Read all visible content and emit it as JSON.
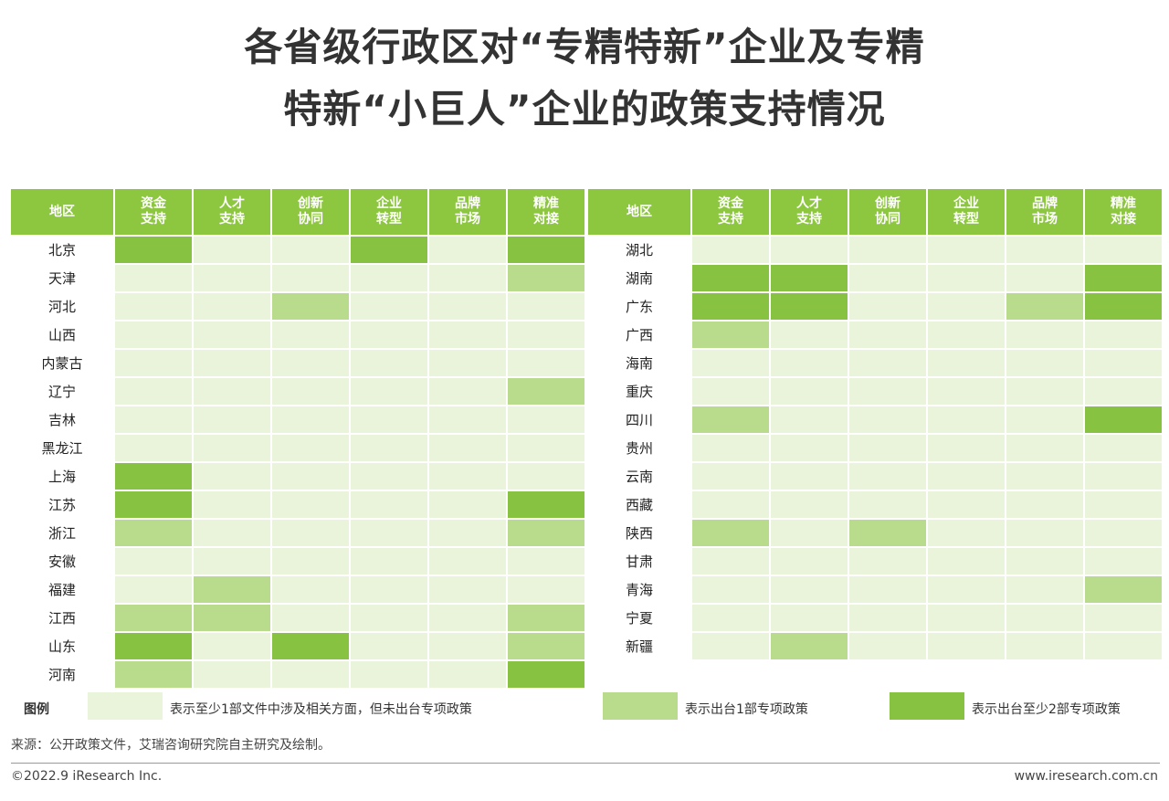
{
  "title_line1": "各省级行政区对“专精特新”企业及专精",
  "title_line2": "特新“小巨人”企业的政策支持情况",
  "columns": [
    "地区",
    "资金\n支持",
    "人才\n支持",
    "创新\n协同",
    "企业\n转型",
    "品牌\n市场",
    "精准\n对接"
  ],
  "colors": {
    "header": "#8dc63f",
    "level0": "#e9f4db",
    "level1": "#b8dc8c",
    "level2": "#87c241"
  },
  "left_rows": [
    {
      "region": "北京",
      "levels": [
        2,
        0,
        0,
        2,
        0,
        2
      ]
    },
    {
      "region": "天津",
      "levels": [
        0,
        0,
        0,
        0,
        0,
        1
      ]
    },
    {
      "region": "河北",
      "levels": [
        0,
        0,
        1,
        0,
        0,
        0
      ]
    },
    {
      "region": "山西",
      "levels": [
        0,
        0,
        0,
        0,
        0,
        0
      ]
    },
    {
      "region": "内蒙古",
      "levels": [
        0,
        0,
        0,
        0,
        0,
        0
      ]
    },
    {
      "region": "辽宁",
      "levels": [
        0,
        0,
        0,
        0,
        0,
        1
      ]
    },
    {
      "region": "吉林",
      "levels": [
        0,
        0,
        0,
        0,
        0,
        0
      ]
    },
    {
      "region": "黑龙江",
      "levels": [
        0,
        0,
        0,
        0,
        0,
        0
      ]
    },
    {
      "region": "上海",
      "levels": [
        2,
        0,
        0,
        0,
        0,
        0
      ]
    },
    {
      "region": "江苏",
      "levels": [
        2,
        0,
        0,
        0,
        0,
        2
      ]
    },
    {
      "region": "浙江",
      "levels": [
        1,
        0,
        0,
        0,
        0,
        1
      ]
    },
    {
      "region": "安徽",
      "levels": [
        0,
        0,
        0,
        0,
        0,
        0
      ]
    },
    {
      "region": "福建",
      "levels": [
        0,
        1,
        0,
        0,
        0,
        0
      ]
    },
    {
      "region": "江西",
      "levels": [
        1,
        1,
        0,
        0,
        0,
        1
      ]
    },
    {
      "region": "山东",
      "levels": [
        2,
        0,
        2,
        0,
        0,
        1
      ]
    },
    {
      "region": "河南",
      "levels": [
        1,
        0,
        0,
        0,
        0,
        2
      ]
    }
  ],
  "right_rows": [
    {
      "region": "湖北",
      "levels": [
        0,
        0,
        0,
        0,
        0,
        0
      ]
    },
    {
      "region": "湖南",
      "levels": [
        2,
        2,
        0,
        0,
        0,
        2
      ]
    },
    {
      "region": "广东",
      "levels": [
        2,
        2,
        0,
        0,
        1,
        2
      ]
    },
    {
      "region": "广西",
      "levels": [
        1,
        0,
        0,
        0,
        0,
        0
      ]
    },
    {
      "region": "海南",
      "levels": [
        0,
        0,
        0,
        0,
        0,
        0
      ]
    },
    {
      "region": "重庆",
      "levels": [
        0,
        0,
        0,
        0,
        0,
        0
      ]
    },
    {
      "region": "四川",
      "levels": [
        1,
        0,
        0,
        0,
        0,
        2
      ]
    },
    {
      "region": "贵州",
      "levels": [
        0,
        0,
        0,
        0,
        0,
        0
      ]
    },
    {
      "region": "云南",
      "levels": [
        0,
        0,
        0,
        0,
        0,
        0
      ]
    },
    {
      "region": "西藏",
      "levels": [
        0,
        0,
        0,
        0,
        0,
        0
      ]
    },
    {
      "region": "陕西",
      "levels": [
        1,
        0,
        1,
        0,
        0,
        0
      ]
    },
    {
      "region": "甘肃",
      "levels": [
        0,
        0,
        0,
        0,
        0,
        0
      ]
    },
    {
      "region": "青海",
      "levels": [
        0,
        0,
        0,
        0,
        0,
        1
      ]
    },
    {
      "region": "宁夏",
      "levels": [
        0,
        0,
        0,
        0,
        0,
        0
      ]
    },
    {
      "region": "新疆",
      "levels": [
        0,
        1,
        0,
        0,
        0,
        0
      ]
    }
  ],
  "legend": {
    "title": "图例",
    "items": [
      {
        "text": "表示至少1部文件中涉及相关方面，但未出台专项政策"
      },
      {
        "text": "表示出台1部专项政策"
      },
      {
        "text": "表示出台至少2部专项政策"
      }
    ]
  },
  "source": "来源：公开政策文件，艾瑞咨询研究院自主研究及绘制。",
  "footer": {
    "copyright": "©2022.9 iResearch Inc.",
    "website": "www.iresearch.com.cn"
  }
}
